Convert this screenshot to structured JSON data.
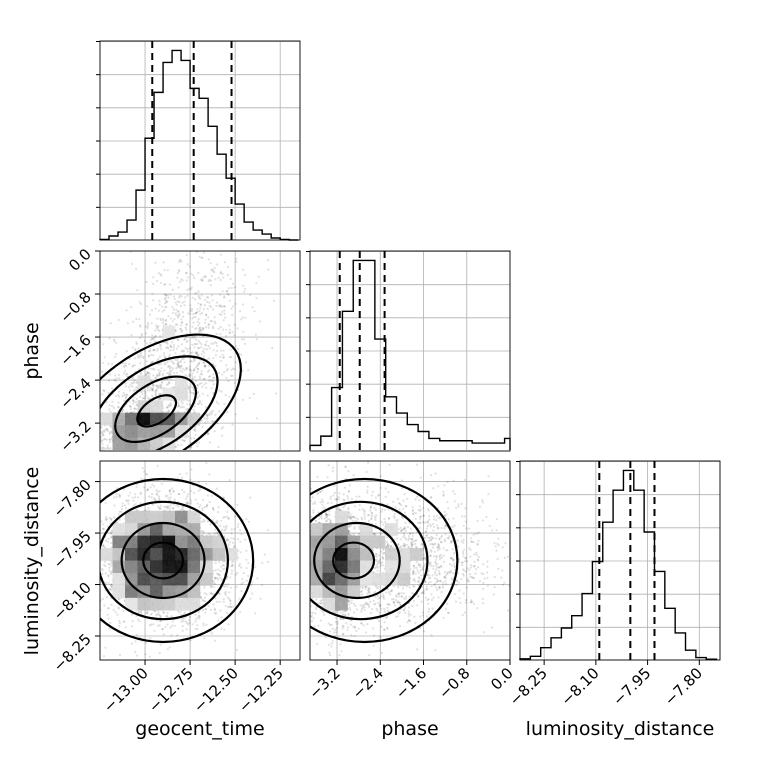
{
  "chart_data": {
    "type": "corner",
    "parameters": [
      "geocent_time",
      "phase",
      "luminosity_distance"
    ],
    "axes": {
      "geocent_time": {
        "label": "geocent_time",
        "range": [
          -13.25,
          -12.14
        ],
        "ticks": [
          -13.0,
          -12.75,
          -12.5,
          -12.25
        ],
        "tick_labels": [
          "−13.00",
          "−12.75",
          "−12.50",
          "−12.25"
        ]
      },
      "phase": {
        "label": "phase",
        "range": [
          -3.7,
          0.0
        ],
        "ticks": [
          -3.2,
          -2.4,
          -1.6,
          -0.8,
          0.0
        ],
        "tick_labels": [
          "−3.2",
          "−2.4",
          "−1.6",
          "−0.8",
          "0.0"
        ]
      },
      "luminosity_distance": {
        "label": "luminosity_distance",
        "range": [
          -8.32,
          -7.74
        ],
        "ticks": [
          -8.25,
          -8.1,
          -7.95,
          -7.8
        ],
        "tick_labels": [
          "−8.25",
          "−8.10",
          "−7.95",
          "−7.80"
        ]
      }
    },
    "histograms": [
      {
        "param": "geocent_time",
        "bin_edges": [
          -13.25,
          -13.2,
          -13.15,
          -13.1,
          -13.05,
          -13.0,
          -12.95,
          -12.9,
          -12.85,
          -12.8,
          -12.75,
          -12.7,
          -12.65,
          -12.6,
          -12.55,
          -12.5,
          -12.45,
          -12.4,
          -12.35,
          -12.3,
          -12.25,
          -12.2,
          -12.15
        ],
        "counts": [
          0.3,
          2,
          4,
          10,
          25,
          51,
          74,
          89,
          95,
          90,
          76,
          71,
          57,
          43,
          31,
          18,
          9,
          5,
          3,
          1,
          0.3,
          0
        ],
        "quantiles": [
          -12.96,
          -12.73,
          -12.52
        ]
      },
      {
        "param": "phase",
        "bin_edges": [
          -3.7,
          -3.5,
          -3.3,
          -3.1,
          -2.9,
          -2.7,
          -2.5,
          -2.3,
          -2.1,
          -1.9,
          -1.7,
          -1.5,
          -1.3,
          -1.1,
          -0.9,
          -0.7,
          -0.5,
          -0.3,
          -0.1,
          0.0
        ],
        "counts": [
          2,
          6,
          27,
          60,
          82,
          82,
          48,
          23,
          16,
          11,
          8,
          5,
          4,
          4,
          4,
          3,
          3,
          3,
          5
        ],
        "quantiles": [
          -3.15,
          -2.78,
          -2.32
        ]
      },
      {
        "param": "luminosity_distance",
        "bin_edges": [
          -8.32,
          -8.29,
          -8.26,
          -8.23,
          -8.2,
          -8.17,
          -8.14,
          -8.11,
          -8.08,
          -8.05,
          -8.02,
          -7.99,
          -7.96,
          -7.93,
          -7.9,
          -7.87,
          -7.84,
          -7.81,
          -7.78,
          -7.75
        ],
        "counts": [
          0.5,
          1.5,
          5,
          9,
          13,
          18,
          27,
          40,
          56,
          69,
          77,
          69,
          52,
          36,
          21,
          11,
          4,
          1,
          0.3
        ],
        "quantiles": [
          -8.09,
          -8.0,
          -7.93
        ]
      }
    ],
    "joint": [
      {
        "x": "geocent_time",
        "y": "phase",
        "center": [
          -12.93,
          -3.0
        ],
        "spread": [
          0.22,
          0.55
        ],
        "rho": 0.6
      },
      {
        "x": "geocent_time",
        "y": "luminosity_distance",
        "center": [
          -12.9,
          -8.03
        ],
        "spread": [
          0.2,
          0.095
        ],
        "rho": 0.0
      },
      {
        "x": "phase",
        "y": "luminosity_distance",
        "center": [
          -2.95,
          -8.03
        ],
        "spread": [
          0.55,
          0.095
        ],
        "rho": 0.0
      }
    ]
  }
}
